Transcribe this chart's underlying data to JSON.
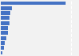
{
  "values": [
    46,
    8,
    7,
    6,
    6,
    5,
    5,
    4,
    3,
    2,
    1
  ],
  "bar_color": "#4472c4",
  "background_color": "#f2f2f2",
  "plot_background": "#f2f2f2",
  "grid_color": "#ffffff",
  "grid_style": "--",
  "figsize": [
    1.0,
    0.71
  ],
  "dpi": 100,
  "bar_height": 0.75,
  "xlim_max": 55
}
